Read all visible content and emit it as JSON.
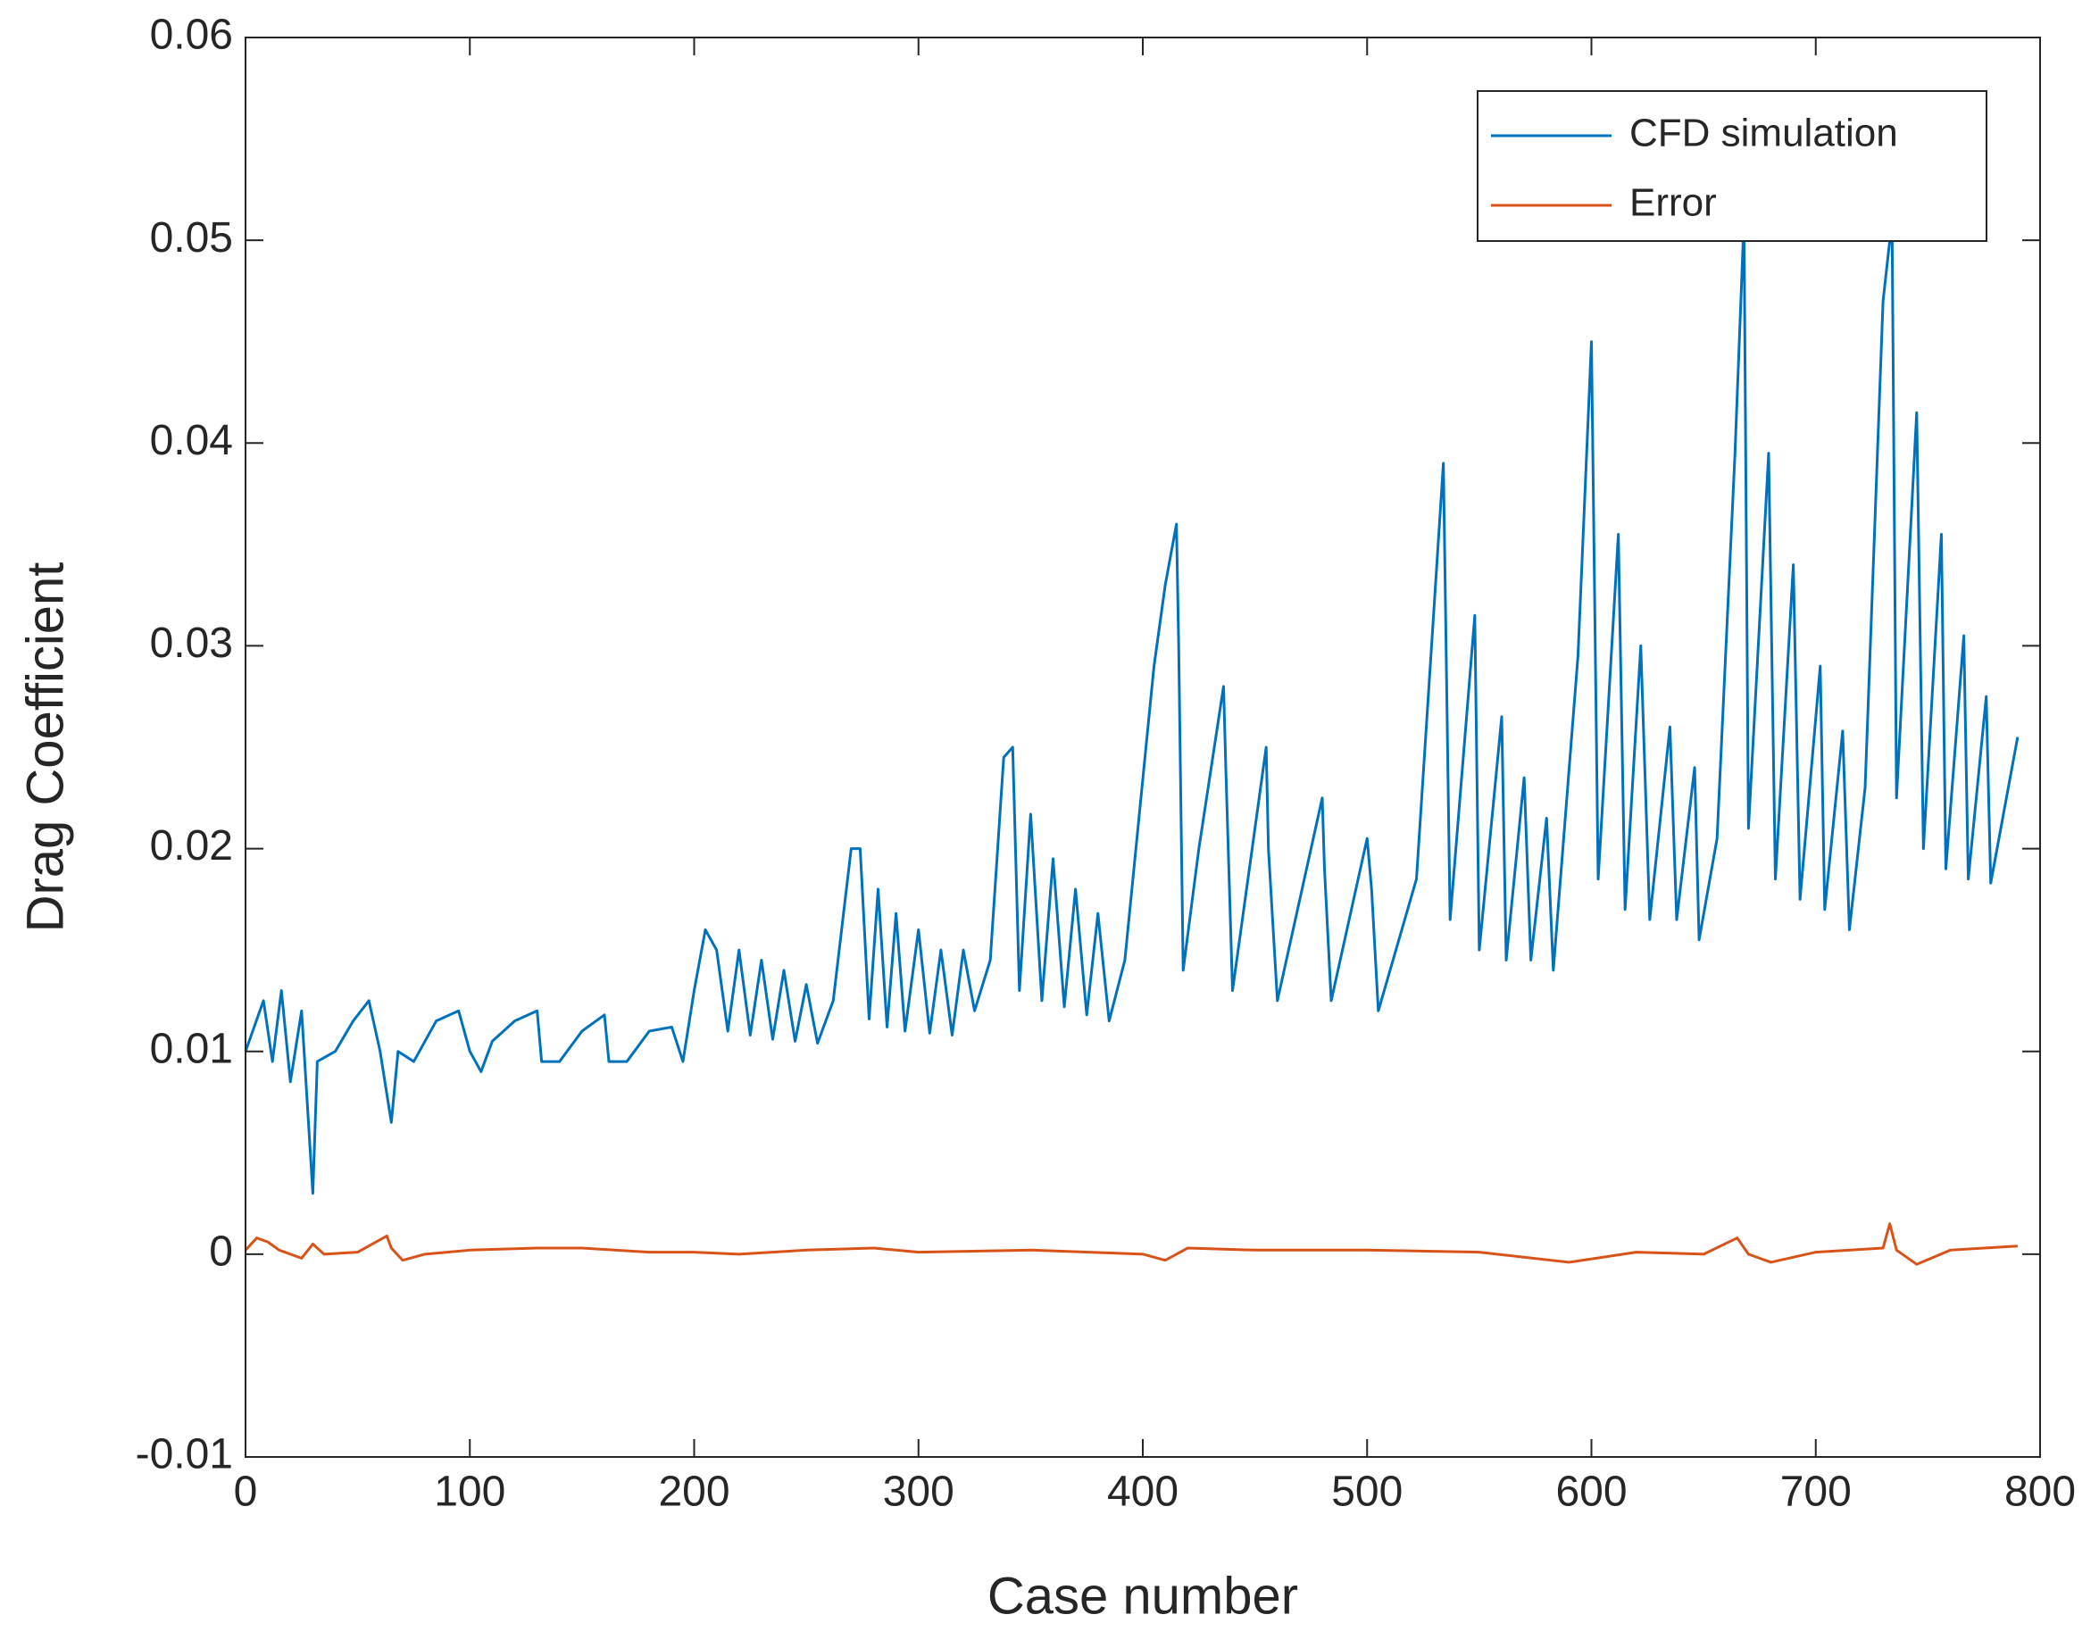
{
  "chart_data": {
    "type": "line",
    "xlabel": "Case number",
    "ylabel": "Drag Coefficient",
    "xlim": [
      0,
      800
    ],
    "xticks": [
      0,
      100,
      200,
      300,
      400,
      500,
      600,
      700,
      800
    ],
    "ylim": [
      -0.01,
      0.06
    ],
    "yticks": [
      -0.01,
      0,
      0.01,
      0.02,
      0.03,
      0.04,
      0.05,
      0.06
    ],
    "legend": "northeast",
    "grid": false,
    "series": [
      {
        "name": "CFD simulation",
        "color": "#0072bd",
        "x": [
          0,
          8,
          12,
          16,
          20,
          25,
          30,
          32,
          40,
          48,
          55,
          60,
          65,
          68,
          75,
          85,
          95,
          100,
          105,
          110,
          120,
          130,
          132,
          140,
          150,
          160,
          162,
          170,
          180,
          190,
          195,
          200,
          205,
          210,
          215,
          220,
          225,
          230,
          235,
          240,
          245,
          250,
          255,
          262,
          270,
          274,
          278,
          282,
          286,
          290,
          294,
          300,
          305,
          310,
          315,
          320,
          325,
          332,
          338,
          342,
          345,
          350,
          355,
          360,
          365,
          370,
          375,
          380,
          385,
          392,
          405,
          410,
          415,
          416,
          418,
          425,
          436,
          437,
          440,
          455,
          456,
          460,
          480,
          481,
          484,
          500,
          502,
          505,
          522,
          534,
          537,
          548,
          550,
          560,
          562,
          570,
          573,
          580,
          583,
          594,
          600,
          603,
          612,
          615,
          622,
          626,
          635,
          638,
          646,
          648,
          656,
          664,
          668,
          670,
          679,
          682,
          690,
          693,
          702,
          704,
          712,
          715,
          722,
          730,
          734,
          736,
          745,
          748,
          756,
          758,
          766,
          768,
          776,
          778,
          790
        ],
        "values": [
          0.01,
          0.0125,
          0.0095,
          0.013,
          0.0085,
          0.012,
          0.003,
          0.0095,
          0.01,
          0.0115,
          0.0125,
          0.01,
          0.0065,
          0.01,
          0.0095,
          0.0115,
          0.012,
          0.01,
          0.009,
          0.0105,
          0.0115,
          0.012,
          0.0095,
          0.0095,
          0.011,
          0.0118,
          0.0095,
          0.0095,
          0.011,
          0.0112,
          0.0095,
          0.013,
          0.016,
          0.015,
          0.011,
          0.015,
          0.0108,
          0.0145,
          0.0106,
          0.014,
          0.0105,
          0.0133,
          0.0104,
          0.0125,
          0.02,
          0.02,
          0.0116,
          0.018,
          0.0112,
          0.0168,
          0.011,
          0.016,
          0.0109,
          0.015,
          0.0108,
          0.015,
          0.012,
          0.0145,
          0.0245,
          0.025,
          0.013,
          0.0217,
          0.0125,
          0.0195,
          0.0122,
          0.018,
          0.0118,
          0.0168,
          0.0115,
          0.0145,
          0.029,
          0.033,
          0.036,
          0.03,
          0.014,
          0.02,
          0.028,
          0.024,
          0.013,
          0.025,
          0.02,
          0.0125,
          0.0225,
          0.019,
          0.0125,
          0.0205,
          0.018,
          0.012,
          0.0185,
          0.039,
          0.0165,
          0.0315,
          0.015,
          0.0265,
          0.0145,
          0.0235,
          0.0145,
          0.0215,
          0.014,
          0.0295,
          0.045,
          0.0185,
          0.0355,
          0.017,
          0.03,
          0.0165,
          0.026,
          0.0165,
          0.024,
          0.0155,
          0.0205,
          0.0395,
          0.051,
          0.021,
          0.0395,
          0.0185,
          0.034,
          0.0175,
          0.029,
          0.017,
          0.0258,
          0.016,
          0.023,
          0.047,
          0.051,
          0.0225,
          0.0415,
          0.02,
          0.0355,
          0.019,
          0.0305,
          0.0185,
          0.0275,
          0.0183,
          0.0255
        ]
      },
      {
        "name": "Error",
        "color": "#d95319",
        "x": [
          0,
          5,
          10,
          15,
          25,
          30,
          35,
          50,
          63,
          65,
          70,
          80,
          100,
          130,
          150,
          180,
          200,
          220,
          250,
          280,
          300,
          350,
          400,
          410,
          420,
          450,
          500,
          550,
          590,
          620,
          650,
          665,
          670,
          680,
          700,
          730,
          733,
          736,
          745,
          760,
          790
        ],
        "values": [
          0.0002,
          0.0008,
          0.0006,
          0.0002,
          -0.0002,
          0.0005,
          0,
          0.0001,
          0.0009,
          0.0003,
          -0.0003,
          0,
          0.0002,
          0.0003,
          0.0003,
          0.0001,
          0.0001,
          0,
          0.0002,
          0.0003,
          0.0001,
          0.0002,
          0,
          -0.0003,
          0.0003,
          0.0002,
          0.0002,
          0.0001,
          -0.0004,
          0.0001,
          0,
          0.0008,
          0,
          -0.0004,
          0.0001,
          0.0003,
          0.0015,
          0.0002,
          -0.0005,
          0.0002,
          0.0004
        ]
      }
    ]
  }
}
